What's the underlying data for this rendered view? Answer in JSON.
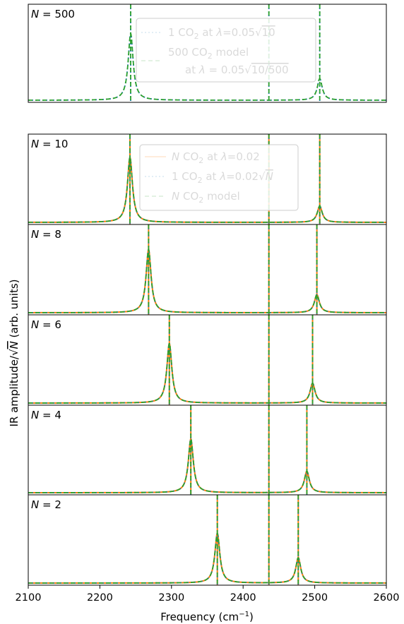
{
  "chart_data": {
    "type": "line",
    "xlabel": "Frequency (cm$^{-1}$)",
    "xlabel_text": "Frequency (cm",
    "xlabel_sup": "−1",
    "xlabel_close": ")",
    "ylabel": "IR amplitude/√N (arb. units)",
    "ylabel_pre": "IR amplitude/",
    "ylabel_N": "N",
    "ylabel_post": " (arb. units)",
    "xlim": [
      2100,
      2600
    ],
    "xticks": [
      "2100",
      "2200",
      "2300",
      "2400",
      "2500",
      "2600"
    ],
    "grid": false,
    "colors": {
      "orange": "#ff7f0e",
      "blue": "#1f77b4",
      "green": "#2ca02c"
    },
    "legend_top": {
      "placement": "upper-center",
      "entries": [
        {
          "style": "dotted",
          "color": "#1f77b4",
          "pre": "1 CO",
          "sub": "2",
          "mid": " at ",
          "lam": "λ",
          "post": "=0.05",
          "sqrt": "10"
        },
        {
          "style": "dashed",
          "color": "#2ca02c",
          "line1_pre": "500 CO",
          "line1_sub": "2",
          "line1_post": " model",
          "line2_pre": "at ",
          "line2_lam": "λ",
          "line2_post": " = 0.05",
          "line2_sqrt": "10/500"
        }
      ]
    },
    "legend_bottom": {
      "placement": "upper-center",
      "entries": [
        {
          "style": "solid",
          "color": "#ff7f0e",
          "N": "N",
          "pre": " CO",
          "sub": "2",
          "mid": " at ",
          "lam": "λ",
          "post": "=0.02",
          "sqrt": ""
        },
        {
          "style": "dotted",
          "color": "#1f77b4",
          "N": "",
          "pre": "1 CO",
          "sub": "2",
          "mid": " at ",
          "lam": "λ",
          "post": "=0.02",
          "sqrt": "N"
        },
        {
          "style": "dashed",
          "color": "#2ca02c",
          "N": "N",
          "pre": " CO",
          "sub": "2",
          "mid": " model",
          "lam": "",
          "post": "",
          "sqrt": ""
        }
      ]
    },
    "panels": [
      {
        "label_N": "N",
        "label_val": " = 500",
        "N": 500,
        "center": 2436,
        "peaks": [
          {
            "x": 2243,
            "amp": 0.68
          },
          {
            "x": 2507,
            "amp": 0.22
          }
        ],
        "series": [
          "dotted",
          "dashed"
        ]
      },
      {
        "label_N": "N",
        "label_val": " = 10",
        "N": 10,
        "center": 2436,
        "peaks": [
          {
            "x": 2242,
            "amp": 0.72
          },
          {
            "x": 2507,
            "amp": 0.18
          }
        ],
        "series": [
          "solid",
          "dotted",
          "dashed"
        ]
      },
      {
        "label_N": "N",
        "label_val": " = 8",
        "N": 8,
        "center": 2436,
        "peaks": [
          {
            "x": 2268,
            "amp": 0.7
          },
          {
            "x": 2503,
            "amp": 0.2
          }
        ],
        "series": [
          "solid",
          "dotted",
          "dashed"
        ]
      },
      {
        "label_N": "N",
        "label_val": " = 6",
        "N": 6,
        "center": 2436,
        "peaks": [
          {
            "x": 2297,
            "amp": 0.66
          },
          {
            "x": 2497,
            "amp": 0.22
          }
        ],
        "series": [
          "solid",
          "dotted",
          "dashed"
        ]
      },
      {
        "label_N": "N",
        "label_val": " = 4",
        "N": 4,
        "center": 2436,
        "peaks": [
          {
            "x": 2327,
            "amp": 0.6
          },
          {
            "x": 2489,
            "amp": 0.24
          }
        ],
        "series": [
          "solid",
          "dotted",
          "dashed"
        ]
      },
      {
        "label_N": "N",
        "label_val": " = 2",
        "N": 2,
        "center": 2436,
        "peaks": [
          {
            "x": 2364,
            "amp": 0.55
          },
          {
            "x": 2477,
            "amp": 0.28
          }
        ],
        "series": [
          "solid",
          "dotted",
          "dashed"
        ]
      }
    ]
  }
}
